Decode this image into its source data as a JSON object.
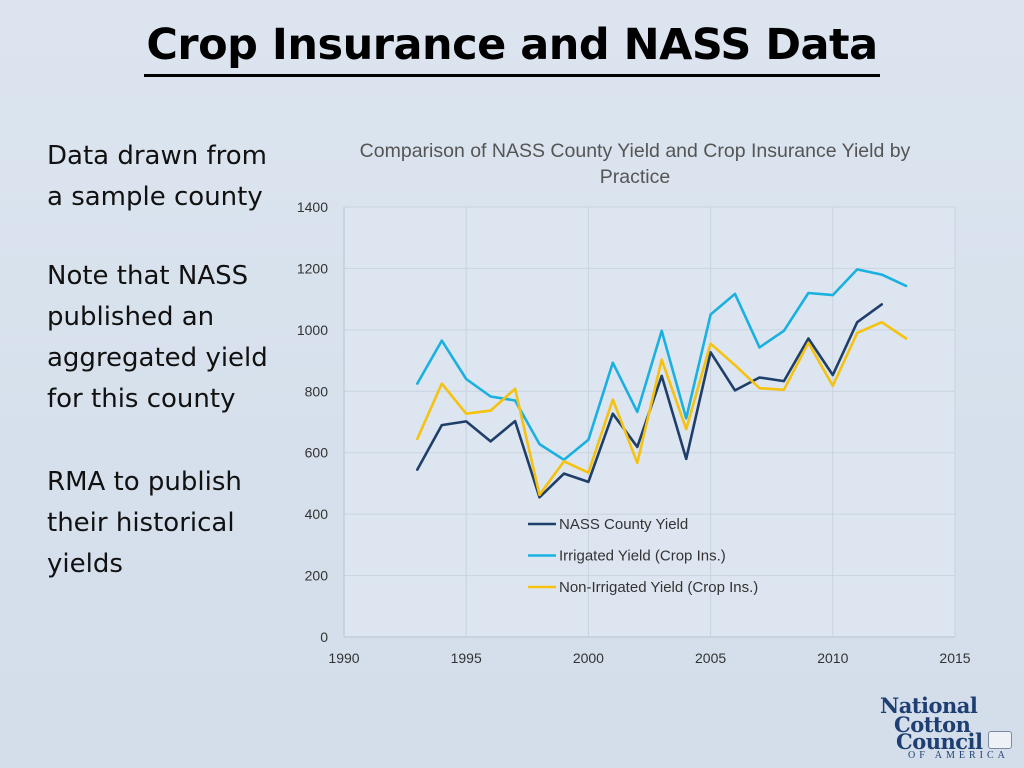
{
  "slide": {
    "title": "Crop Insurance and NASS Data",
    "bullets": [
      "Data drawn from a sample county",
      "Note that NASS published an aggregated yield for this county",
      "RMA to publish their historical yields"
    ]
  },
  "logo": {
    "lines": [
      "National",
      "Cotton",
      "Council"
    ],
    "sub": "OF AMERICA",
    "color": "#1f3f73"
  },
  "chart_data": {
    "type": "line",
    "title": "Comparison of NASS County Yield and Crop Insurance Yield by Practice",
    "xlabel": "",
    "ylabel": "",
    "xlim": [
      1990,
      2015
    ],
    "ylim": [
      0,
      1400
    ],
    "xticks": [
      "1990",
      "1995",
      "2000",
      "2005",
      "2010",
      "2015"
    ],
    "yticks": [
      "0",
      "200",
      "400",
      "600",
      "800",
      "1000",
      "1200",
      "1400"
    ],
    "grid": true,
    "legend_position": "center-right",
    "series": [
      {
        "name": "NASS County Yield",
        "color": "#1f3f6b",
        "x": [
          1993,
          1994,
          1995,
          1996,
          1997,
          1998,
          1999,
          2000,
          2001,
          2002,
          2003,
          2004,
          2005,
          2006,
          2007,
          2008,
          2009,
          2010,
          2011,
          2012
        ],
        "values": [
          545,
          690,
          702,
          637,
          703,
          455,
          532,
          505,
          727,
          619,
          850,
          580,
          927,
          803,
          845,
          833,
          972,
          853,
          1025,
          1083
        ]
      },
      {
        "name": "Irrigated Yield (Crop Ins.)",
        "color": "#1ab0e0",
        "x": [
          1993,
          1994,
          1995,
          1996,
          1997,
          1998,
          1999,
          2000,
          2001,
          2002,
          2003,
          2004,
          2005,
          2006,
          2007,
          2008,
          2009,
          2010,
          2011,
          2012,
          2013
        ],
        "values": [
          825,
          965,
          840,
          783,
          770,
          628,
          577,
          642,
          893,
          733,
          997,
          712,
          1050,
          1117,
          943,
          997,
          1120,
          1113,
          1197,
          1180,
          1143
        ]
      },
      {
        "name": "Non-Irrigated Yield (Crop Ins.)",
        "color": "#f5c20f",
        "x": [
          1993,
          1994,
          1995,
          1996,
          1997,
          1998,
          1999,
          2000,
          2001,
          2002,
          2003,
          2004,
          2005,
          2006,
          2007,
          2008,
          2009,
          2010,
          2011,
          2012,
          2013
        ],
        "values": [
          645,
          825,
          727,
          737,
          808,
          463,
          572,
          535,
          773,
          567,
          903,
          677,
          955,
          885,
          810,
          805,
          958,
          818,
          990,
          1025,
          972
        ]
      }
    ]
  }
}
